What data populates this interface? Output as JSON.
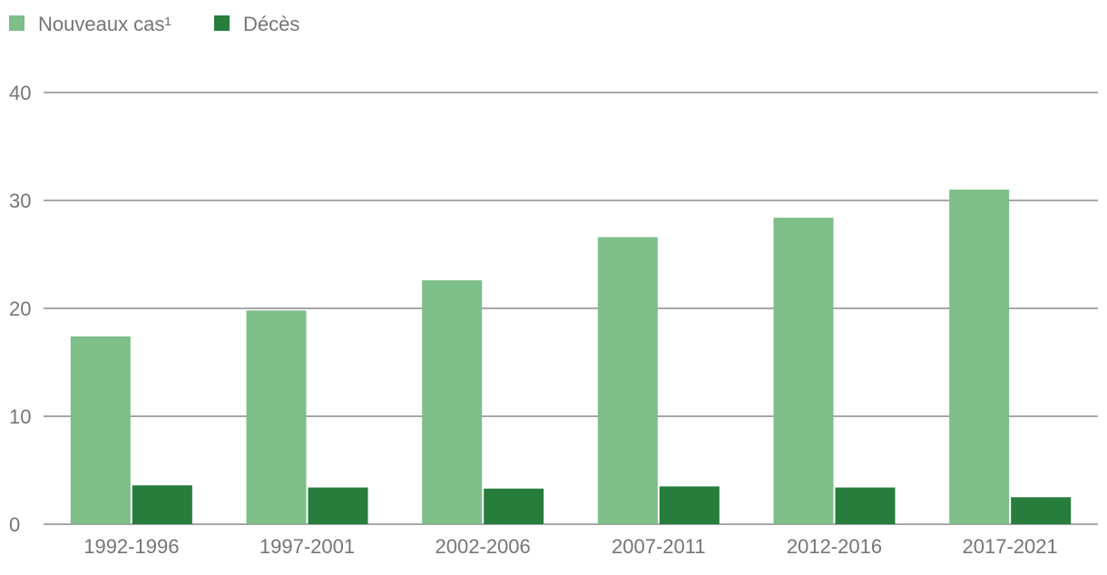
{
  "chart_data": {
    "type": "bar",
    "title": "",
    "xlabel": "",
    "ylabel": "",
    "categories": [
      "1992-1996",
      "1997-2001",
      "2002-2006",
      "2007-2011",
      "2012-2016",
      "2017-2021"
    ],
    "series": [
      {
        "name": "Nouveaux cas¹",
        "color": "#7dbe89",
        "values": [
          17.4,
          19.8,
          22.6,
          26.6,
          28.4,
          31.0
        ]
      },
      {
        "name": "Décès",
        "color": "#267d3c",
        "values": [
          3.6,
          3.4,
          3.3,
          3.5,
          3.4,
          2.5
        ]
      }
    ],
    "ylim": [
      0,
      40
    ],
    "yticks": [
      "0",
      "10",
      "20",
      "30",
      "40"
    ],
    "grid": true,
    "legend_position": "top-left",
    "colors": {
      "gridline": "#8a8a8a",
      "axis_text": "#757575"
    }
  }
}
